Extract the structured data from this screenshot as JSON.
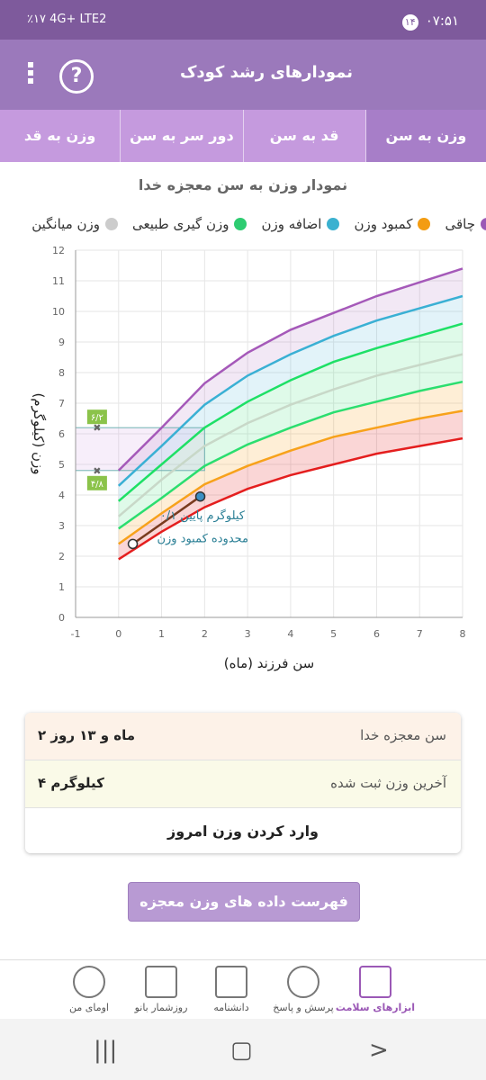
{
  "status": {
    "battery": "٪۱۷",
    "network": "4G+ LTE2",
    "time": "۰۷:۵۱",
    "notif_count": "۱۴"
  },
  "appbar": {
    "title": "نمودارهای رشد کودک",
    "help": "?"
  },
  "tabs": [
    {
      "label": "وزن به سن",
      "active": true
    },
    {
      "label": "قد به سن",
      "active": false
    },
    {
      "label": "دور سر به سن",
      "active": false
    },
    {
      "label": "وزن به قد",
      "active": false
    }
  ],
  "chart_title": "نمودار وزن به سن معجزه خدا",
  "legend": [
    {
      "label": "چاقی",
      "color": "#9b59b6"
    },
    {
      "label": "کمبود وزن",
      "color": "#f39c12"
    },
    {
      "label": "اضافه وزن",
      "color": "#3bb1d0"
    },
    {
      "label": "وزن گیری طبیعی",
      "color": "#2ecc71"
    },
    {
      "label": "وزن میانگین",
      "color": "#cccccc"
    }
  ],
  "chart_data": {
    "type": "area",
    "xlabel": "سن فرزند (ماه)",
    "ylabel": "وزن (کیلوگرم)",
    "xlim": [
      -1,
      8
    ],
    "ylim": [
      0,
      12
    ],
    "x_ticks": [
      "-1",
      "0",
      "1",
      "2",
      "3",
      "4",
      "5",
      "6",
      "7",
      "8"
    ],
    "y_ticks": [
      "0",
      "1",
      "2",
      "3",
      "4",
      "5",
      "6",
      "7",
      "8",
      "9",
      "10",
      "11",
      "12"
    ],
    "x": [
      0,
      1,
      2,
      3,
      4,
      5,
      6,
      7,
      8
    ],
    "series": [
      {
        "color": "#e41e1e",
        "values": [
          1.9,
          2.8,
          3.6,
          4.2,
          4.65,
          5.0,
          5.35,
          5.6,
          5.85
        ]
      },
      {
        "color": "#f7a21b",
        "values": [
          2.4,
          3.4,
          4.35,
          4.95,
          5.45,
          5.9,
          6.2,
          6.5,
          6.75
        ]
      },
      {
        "color": "#c8d8c8",
        "values": [
          3.3,
          4.5,
          5.6,
          6.35,
          6.95,
          7.45,
          7.9,
          8.25,
          8.6
        ]
      },
      {
        "color": "#2bde6f",
        "values": [
          2.9,
          3.9,
          4.95,
          5.65,
          6.2,
          6.7,
          7.05,
          7.4,
          7.7
        ]
      },
      {
        "color": "#1ee066",
        "values": [
          3.8,
          5.0,
          6.2,
          7.05,
          7.75,
          8.35,
          8.8,
          9.2,
          9.6
        ]
      },
      {
        "color": "#3ab0d4",
        "values": [
          4.3,
          5.6,
          6.95,
          7.9,
          8.6,
          9.2,
          9.7,
          10.1,
          10.5
        ]
      },
      {
        "color": "#a559b9",
        "values": [
          4.8,
          6.2,
          7.65,
          8.65,
          9.4,
          9.95,
          10.5,
          10.95,
          11.4
        ]
      }
    ],
    "child_points": [
      {
        "x": 0.33,
        "y": 2.4
      },
      {
        "x": 1.9,
        "y": 3.95
      }
    ],
    "range_markers": [
      {
        "label": "۶/۲",
        "y": 6.2
      },
      {
        "label": "۴/۸",
        "y": 4.8
      }
    ],
    "annotation_lines": [
      "۰/۱ کیلوگرم پایین",
      "محدوده کمبود وزن"
    ]
  },
  "info": {
    "age_label": "سن معجزه خدا",
    "age_value": "۲ ماه و ۱۳ روز",
    "weight_label": "آخرین وزن ثبت شده",
    "weight_value": "۴ کیلوگرم",
    "enter_today": "وارد کردن وزن امروز"
  },
  "list_button": "فهرست داده های وزن معجزه خدا",
  "bottom_nav": [
    {
      "label": "ابزارهای سلامت",
      "icon": "medkit-icon",
      "active": true
    },
    {
      "label": "پرسش و پاسخ",
      "icon": "question-icon",
      "active": false
    },
    {
      "label": "دانشنامه",
      "icon": "book-icon",
      "active": false
    },
    {
      "label": "روزشمار بانو",
      "icon": "calendar-icon",
      "active": false
    },
    {
      "label": "اومای من",
      "icon": "profile-icon",
      "active": false
    }
  ]
}
